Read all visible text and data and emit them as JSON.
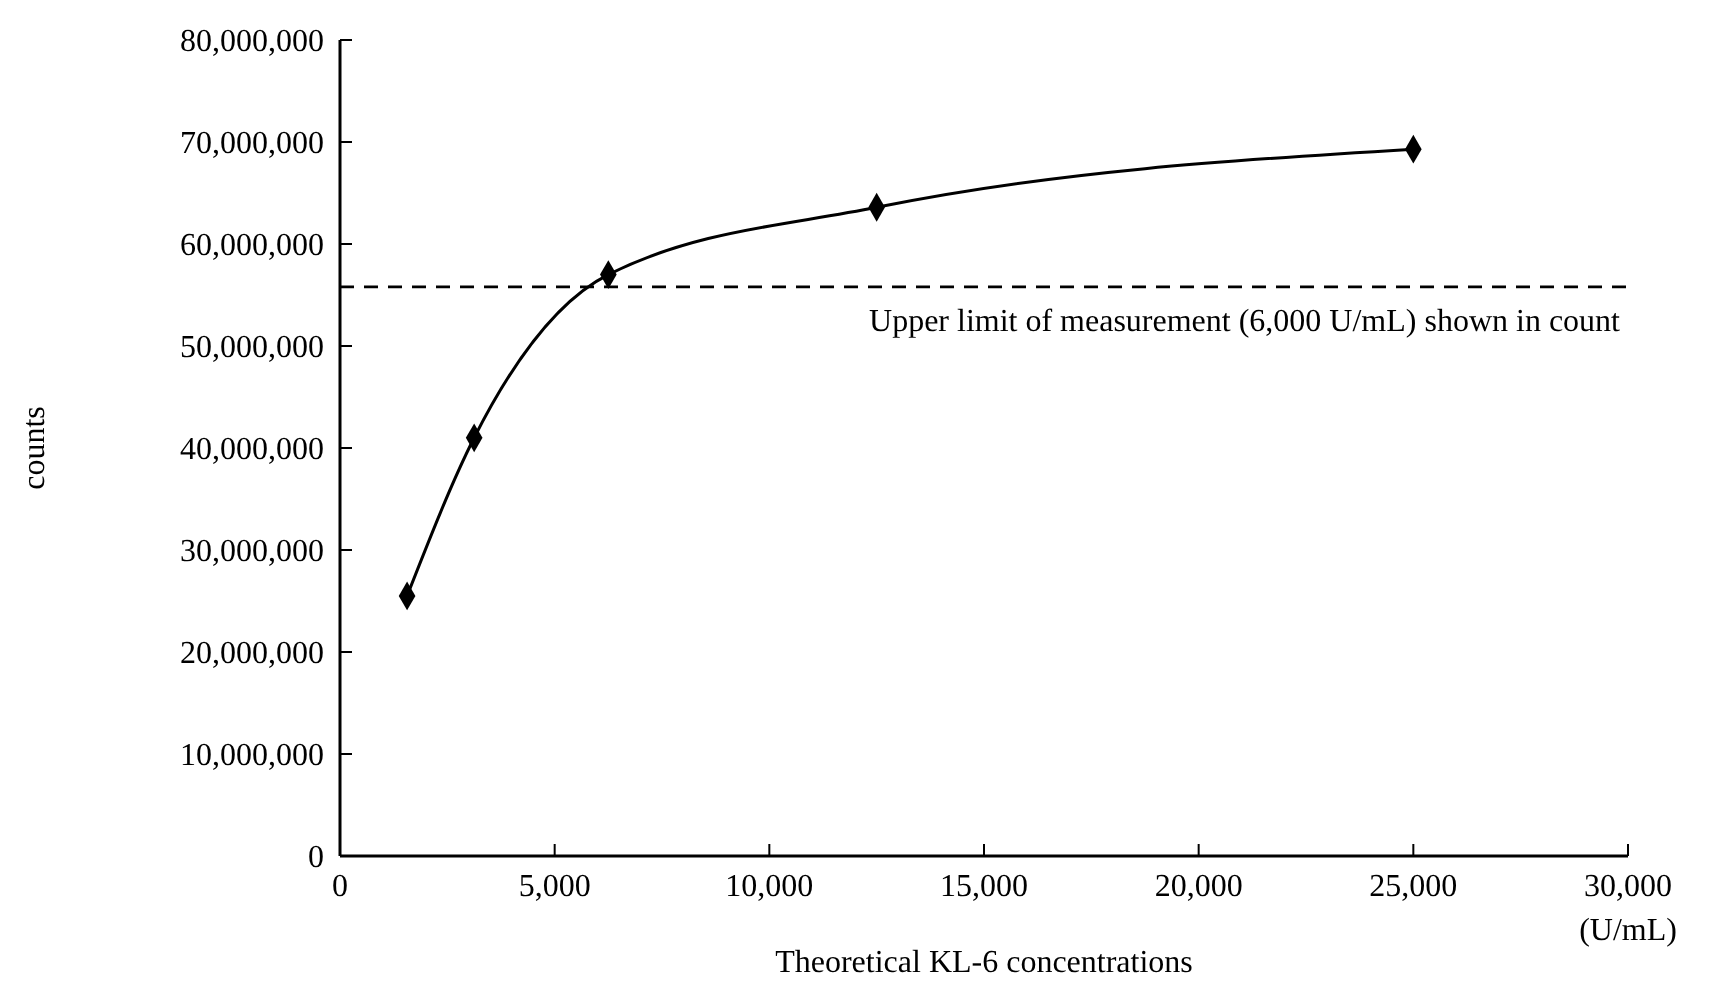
{
  "chart_data": {
    "type": "line",
    "xlabel": "Theoretical KL-6 concentrations",
    "ylabel": "counts",
    "x": [
      1562.5,
      3125,
      6250,
      12500,
      25000
    ],
    "series": [
      {
        "color": "#000000",
        "values": [
          25500000,
          41000000,
          57000000,
          63600000,
          69300000
        ]
      }
    ],
    "xlim": [
      0,
      30000
    ],
    "xticks": [
      {
        "value": 0,
        "label": "0"
      },
      {
        "value": 5000,
        "label": "5,000"
      },
      {
        "value": 10000,
        "label": "10,000"
      },
      {
        "value": 15000,
        "label": "15,000"
      },
      {
        "value": 20000,
        "label": "20,000"
      },
      {
        "value": 25000,
        "label": "25,000"
      },
      {
        "value": 30000,
        "label": "30,000"
      }
    ],
    "ylim": [
      0,
      80000000
    ],
    "yticks": [
      {
        "value": 0,
        "label": "0"
      },
      {
        "value": 10000000,
        "label": "10,000,000"
      },
      {
        "value": 20000000,
        "label": "20,000,000"
      },
      {
        "value": 30000000,
        "label": "30,000,000"
      },
      {
        "value": 40000000,
        "label": "40,000,000"
      },
      {
        "value": 50000000,
        "label": "50,000,000"
      },
      {
        "value": 60000000,
        "label": "60,000,000"
      },
      {
        "value": 70000000,
        "label": "70,000,000"
      },
      {
        "value": 80000000,
        "label": "80,000,000"
      }
    ],
    "ref_lines": [
      {
        "axis": "y",
        "value": 55800000,
        "label": "Upper limit of measurement (6,000 U/mL) shown in count",
        "line_style": "dashed",
        "color": "#000000"
      }
    ],
    "annotations": [
      "(U/mL)"
    ],
    "marker": "diamond",
    "line_style": "solid",
    "grid": false
  }
}
